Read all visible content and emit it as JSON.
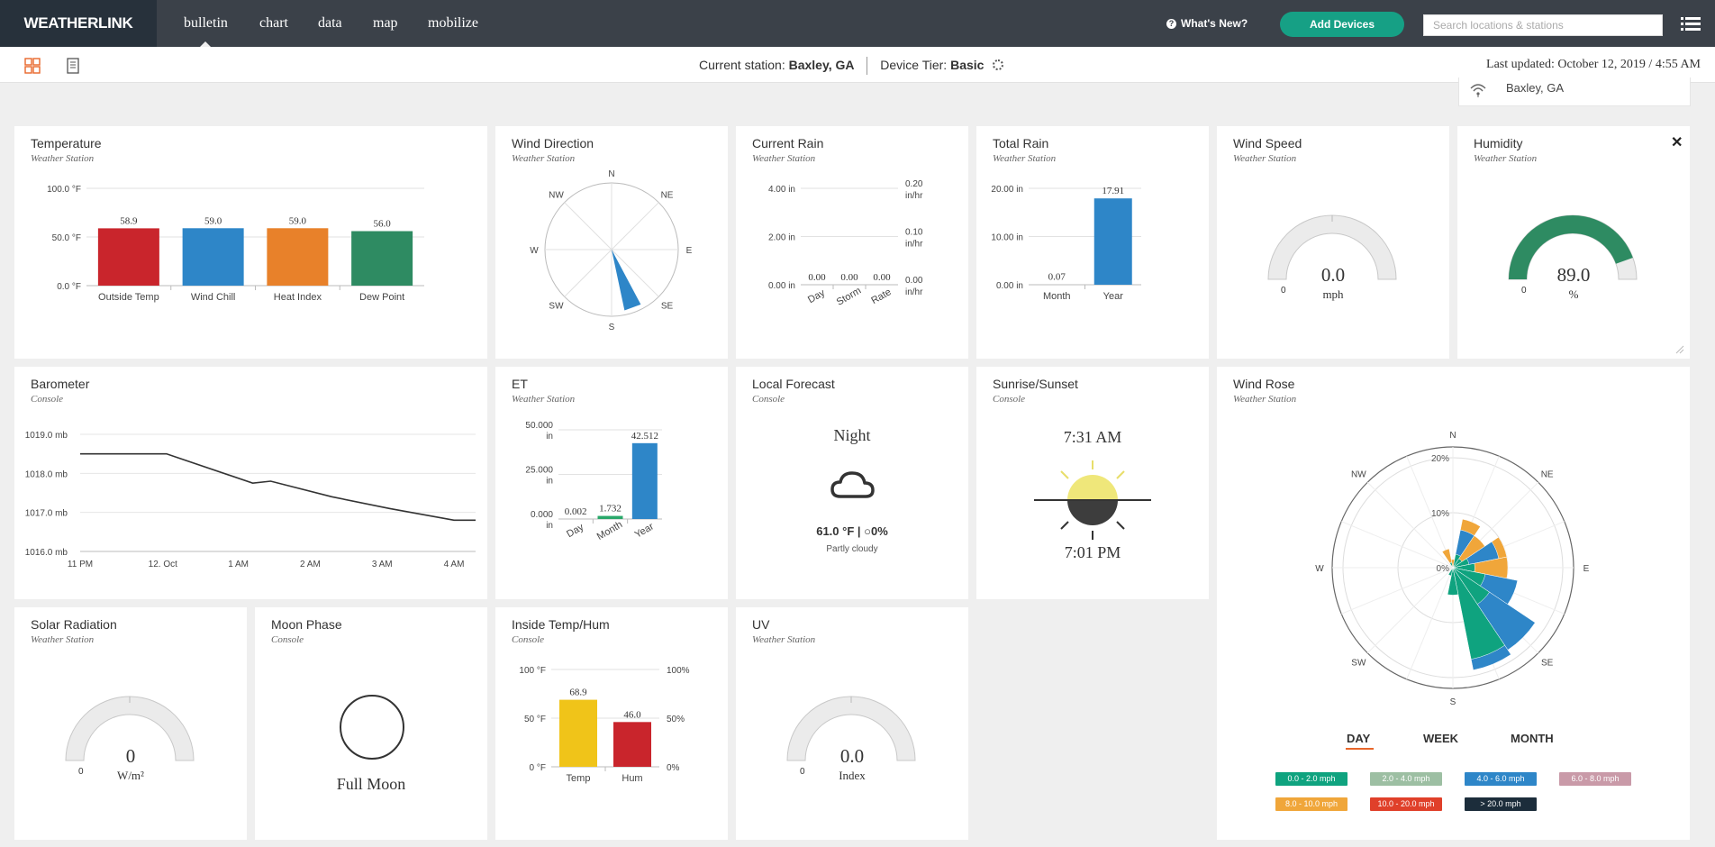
{
  "app": {
    "logo": "WEATHERLINK"
  },
  "nav": {
    "tabs": [
      {
        "label": "bulletin",
        "active": true
      },
      {
        "label": "chart"
      },
      {
        "label": "data"
      },
      {
        "label": "map"
      },
      {
        "label": "mobilize"
      }
    ],
    "whats_new": "What's New?",
    "add_devices": "Add Devices",
    "search_placeholder": "Search locations & stations",
    "accent": "#16a085"
  },
  "subbar": {
    "current_station_label": "Current station:",
    "current_station": "Baxley, GA",
    "tier_label": "Device Tier:",
    "tier": "Basic",
    "last_updated": "Last updated: October 12, 2019 / 4:55 AM",
    "location_dropdown": "Baxley, GA"
  },
  "cards": {
    "temperature": {
      "title": "Temperature",
      "source": "Weather Station"
    },
    "wind_direction": {
      "title": "Wind Direction",
      "source": "Weather Station"
    },
    "current_rain": {
      "title": "Current Rain",
      "source": "Weather Station"
    },
    "total_rain": {
      "title": "Total Rain",
      "source": "Weather Station"
    },
    "wind_speed": {
      "title": "Wind Speed",
      "source": "Weather Station",
      "value": "0.0",
      "unit": "mph",
      "min": "0"
    },
    "humidity": {
      "title": "Humidity",
      "source": "Weather Station",
      "value": "89.0",
      "unit": "%",
      "min": "0",
      "close": "✕"
    },
    "barometer": {
      "title": "Barometer",
      "source": "Console"
    },
    "et": {
      "title": "ET",
      "source": "Weather Station"
    },
    "forecast": {
      "title": "Local Forecast",
      "source": "Console",
      "period": "Night",
      "temp_line": "61.0 °F | ○0%",
      "desc": "Partly cloudy"
    },
    "sunrise": {
      "title": "Sunrise/Sunset",
      "source": "Console",
      "sunrise": "7:31 AM",
      "sunset": "7:01 PM"
    },
    "wind_rose": {
      "title": "Wind Rose",
      "source": "Weather Station",
      "tabs": [
        "DAY",
        "WEEK",
        "MONTH"
      ],
      "legend": [
        {
          "label": "0.0 - 2.0 mph",
          "color": "#0fa37f"
        },
        {
          "label": "2.0 - 4.0 mph",
          "color": "#9dbfa3"
        },
        {
          "label": "4.0 - 6.0 mph",
          "color": "#2e86c8"
        },
        {
          "label": "6.0 - 8.0 mph",
          "color": "#c99aa8"
        },
        {
          "label": "8.0 - 10.0 mph",
          "color": "#f0a63a"
        },
        {
          "label": "10.0 - 20.0 mph",
          "color": "#e0402a"
        },
        {
          "label": "> 20.0 mph",
          "color": "#1c2d3b"
        }
      ]
    },
    "solar": {
      "title": "Solar Radiation",
      "source": "Weather Station",
      "value": "0",
      "unit": "W/m²",
      "min": "0"
    },
    "moon": {
      "title": "Moon Phase",
      "source": "Console",
      "phase": "Full Moon"
    },
    "inside": {
      "title": "Inside Temp/Hum",
      "source": "Console"
    },
    "uv": {
      "title": "UV",
      "source": "Weather Station",
      "value": "0.0",
      "unit": "Index",
      "min": "0"
    }
  },
  "chart_data": [
    {
      "id": "temperature",
      "type": "bar",
      "categories": [
        "Outside Temp",
        "Wind Chill",
        "Heat Index",
        "Dew Point"
      ],
      "values": [
        58.9,
        59.0,
        59.0,
        56.0
      ],
      "value_labels": [
        "58.9",
        "59.0",
        "59.0",
        "56.0"
      ],
      "colors": [
        "#c9252c",
        "#2e86c8",
        "#e8812a",
        "#2e8b62"
      ],
      "ylim": [
        0,
        100
      ],
      "yticks": [
        "100.0 °F",
        "50.0 °F",
        "0.0 °F"
      ]
    },
    {
      "id": "wind_direction",
      "type": "compass",
      "labels": [
        "N",
        "NE",
        "E",
        "SE",
        "S",
        "SW",
        "W",
        "NW"
      ],
      "direction_deg": 160
    },
    {
      "id": "current_rain",
      "type": "bar",
      "categories": [
        "Day",
        "Storm",
        "Rate"
      ],
      "values": [
        0,
        0,
        0
      ],
      "value_labels": [
        "0.00",
        "0.00",
        "0.00"
      ],
      "yticks": [
        "4.00 in",
        "2.00 in",
        "0.00 in"
      ],
      "y2ticks": [
        "0.20 in/hr",
        "0.10 in/hr",
        "0.00 in/hr"
      ],
      "ylim": [
        0,
        4
      ]
    },
    {
      "id": "total_rain",
      "type": "bar",
      "categories": [
        "Month",
        "Year"
      ],
      "values": [
        0.07,
        17.91
      ],
      "value_labels": [
        "0.07",
        "17.91"
      ],
      "colors": [
        "#2e86c8",
        "#2e86c8"
      ],
      "yticks": [
        "20.00 in",
        "10.00 in",
        "0.00 in"
      ],
      "ylim": [
        0,
        20
      ]
    },
    {
      "id": "barometer",
      "type": "line",
      "x": [
        "11 PM",
        "12. Oct",
        "1 AM",
        "2 AM",
        "3 AM",
        "4 AM"
      ],
      "points": [
        [
          0,
          1018.5
        ],
        [
          1.2,
          1018.5
        ],
        [
          2.4,
          1017.75
        ],
        [
          2.65,
          1017.8
        ],
        [
          3.5,
          1017.4
        ],
        [
          4.3,
          1017.1
        ],
        [
          5.2,
          1016.8
        ],
        [
          5.5,
          1016.8
        ]
      ],
      "ylim": [
        1016,
        1019
      ],
      "yticks": [
        "1019.0 mb",
        "1018.0 mb",
        "1017.0 mb",
        "1016.0 mb"
      ]
    },
    {
      "id": "et",
      "type": "bar",
      "categories": [
        "Day",
        "Month",
        "Year"
      ],
      "values": [
        0.002,
        1.732,
        42.512
      ],
      "value_labels": [
        "0.002",
        "1.732",
        "42.512"
      ],
      "colors": [
        "#2e86c8",
        "#2aa86a",
        "#2e86c8"
      ],
      "yticks": [
        "50.000 in",
        "25.000 in",
        "0.000 in"
      ],
      "ylim": [
        0,
        50
      ]
    },
    {
      "id": "inside",
      "type": "bar",
      "categories": [
        "Temp",
        "Hum"
      ],
      "values": [
        68.9,
        46.0
      ],
      "value_labels": [
        "68.9",
        "46.0"
      ],
      "colors": [
        "#f0c419",
        "#c9252c"
      ],
      "yticks": [
        "100 °F",
        "50 °F",
        "0 °F"
      ],
      "y2ticks": [
        "100%",
        "50%",
        "0%"
      ],
      "ylim": [
        0,
        100
      ]
    },
    {
      "id": "wind_rose",
      "type": "polar",
      "labels": [
        "N",
        "NE",
        "E",
        "SE",
        "S",
        "SW",
        "W",
        "NW"
      ],
      "rings": [
        "20%",
        "10%",
        "0%"
      ],
      "rmax": 20
    }
  ]
}
